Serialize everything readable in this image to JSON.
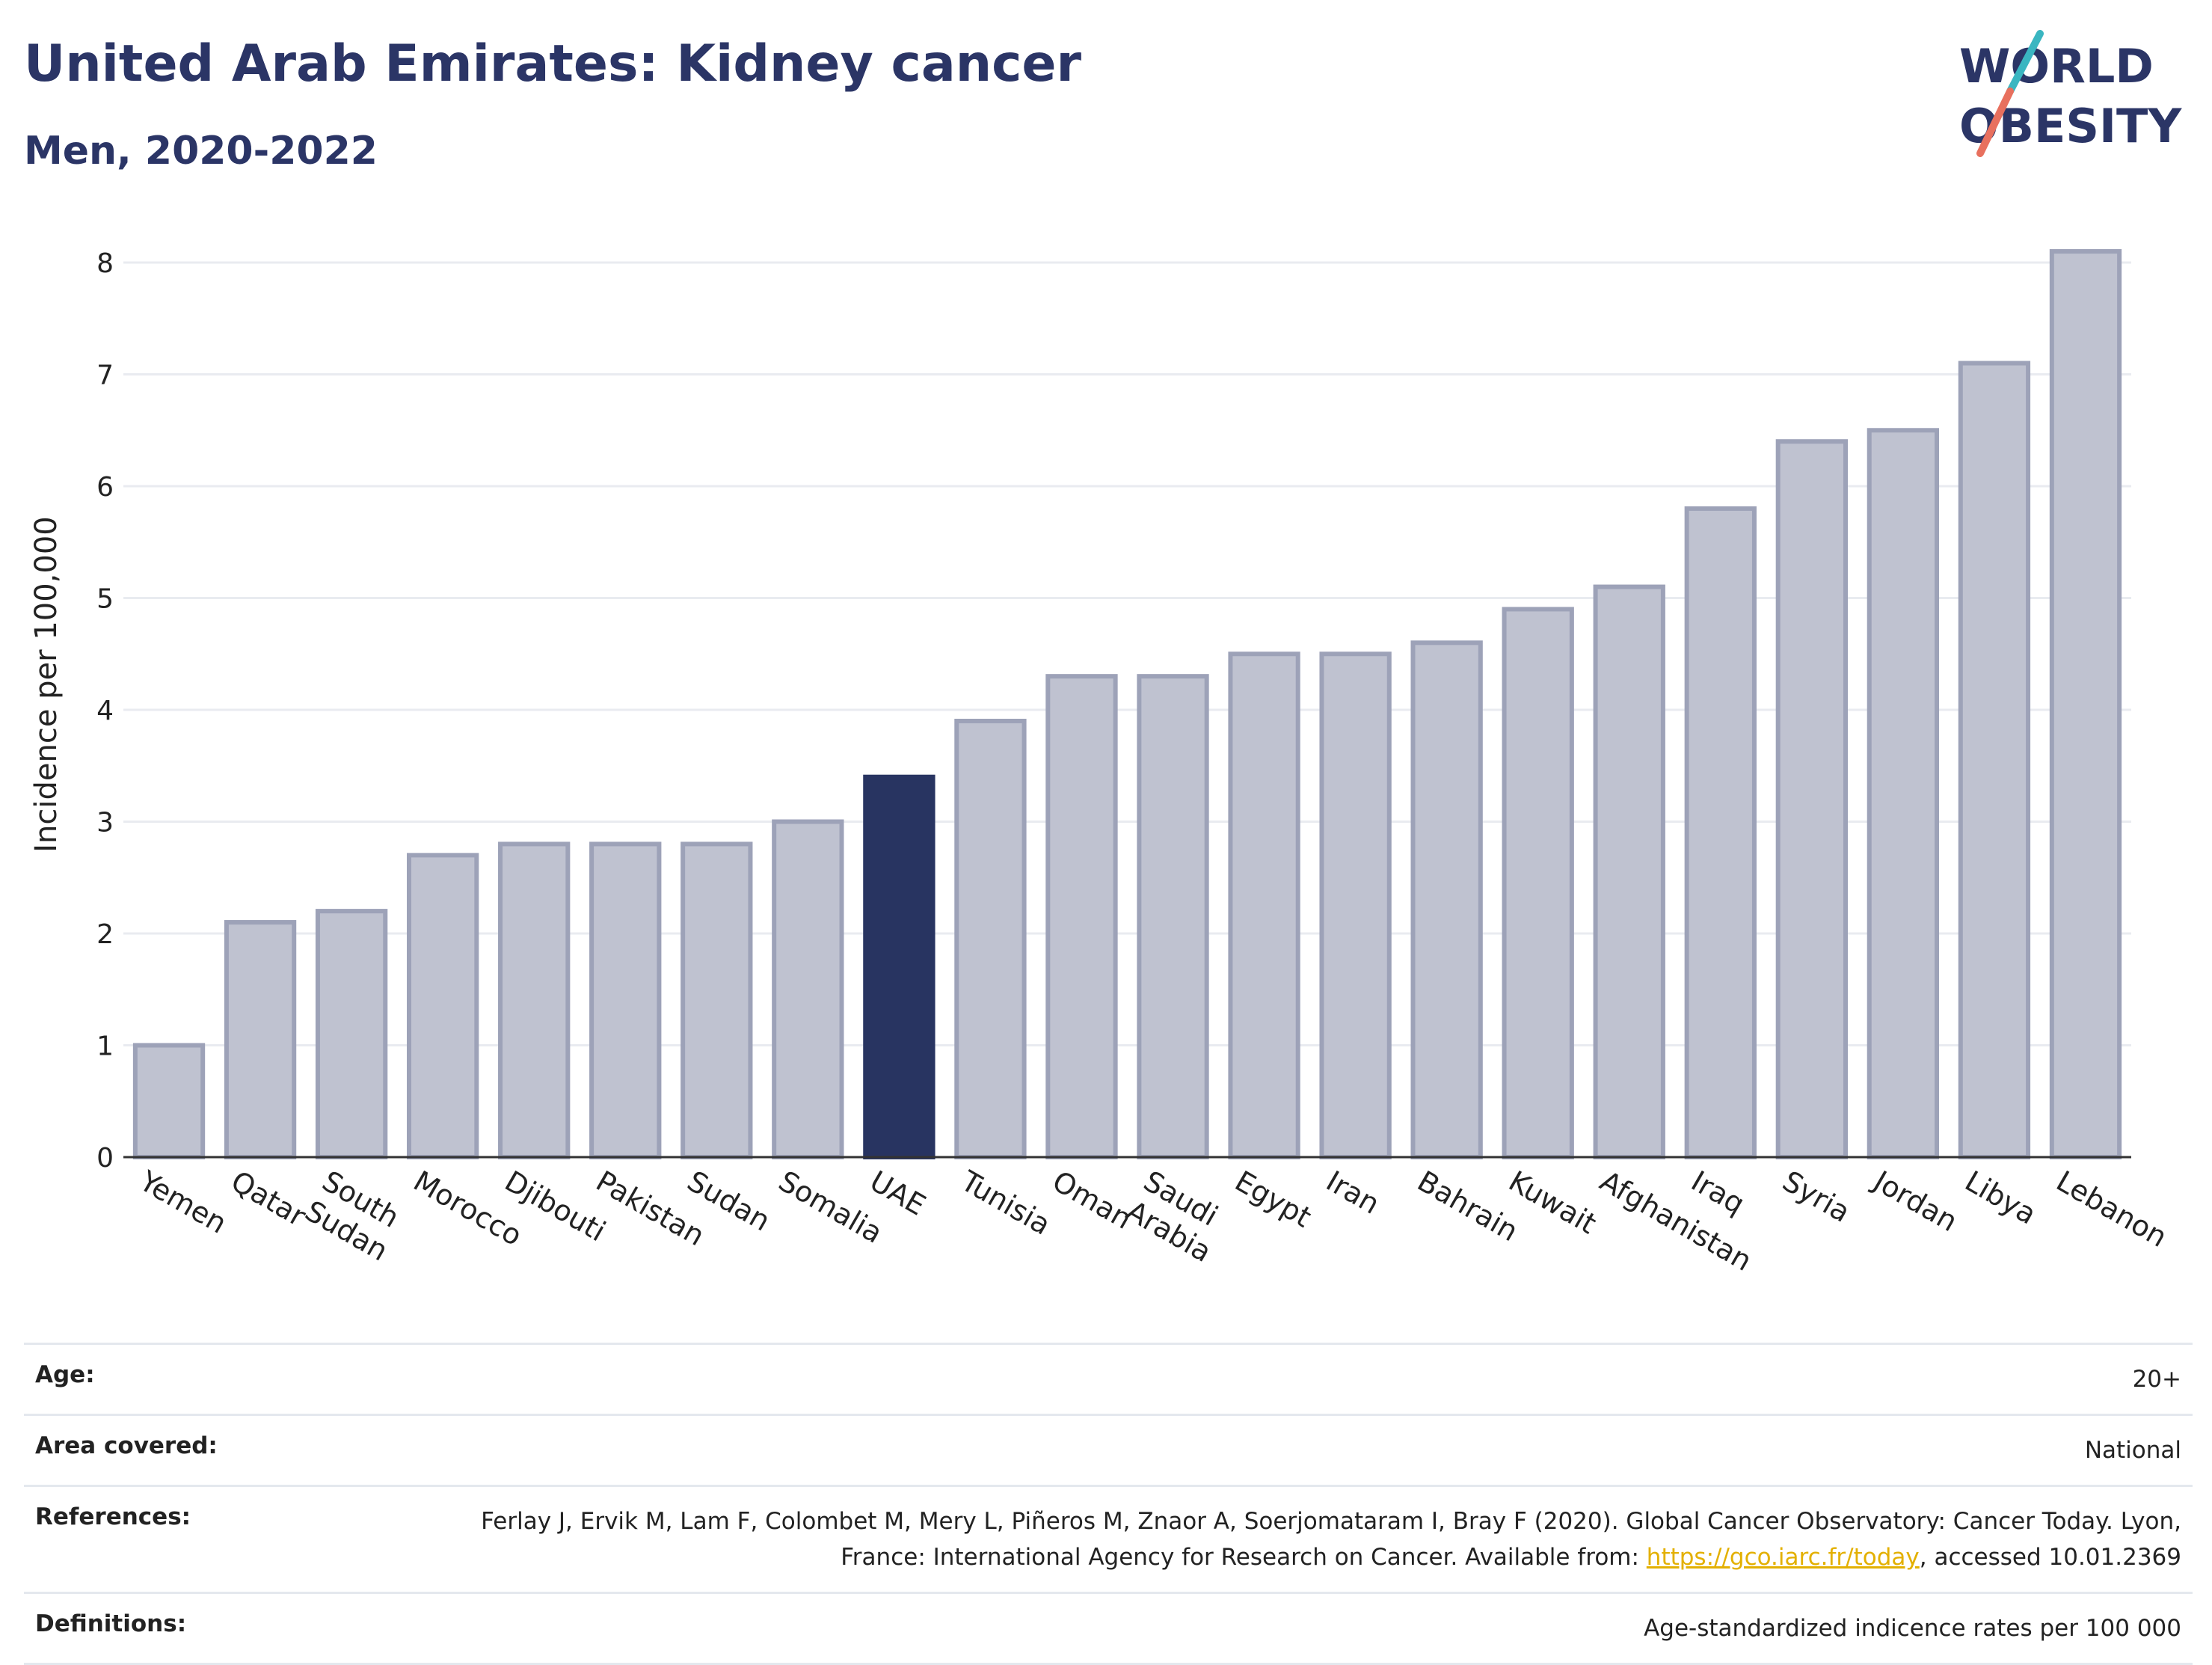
{
  "header": {
    "title": "United Arab Emirates: Kidney cancer",
    "subtitle": "Men, 2020-2022"
  },
  "logo": {
    "line1": "WORLD",
    "line2": "OBESITY",
    "colors": {
      "text": "#2b3566",
      "slash_top": "#3ab6c1",
      "slash_bottom": "#e8705e"
    }
  },
  "chart_data": {
    "type": "bar",
    "ylabel": "Incidence per 100,000",
    "xlabel": "",
    "ylim": [
      0,
      8.2
    ],
    "yticks": [
      0,
      1,
      2,
      3,
      4,
      5,
      6,
      7,
      8
    ],
    "grid": true,
    "highlight": "UAE",
    "colors": {
      "bar": "#bfc2d0",
      "bar_border": "#9da2b8",
      "highlight": "#283461",
      "grid": "#e9ebf0"
    },
    "categories": [
      "Yemen",
      "Qatar",
      "South Sudan",
      "Morocco",
      "Djibouti",
      "Pakistan",
      "Sudan",
      "Somalia",
      "UAE",
      "Tunisia",
      "Oman",
      "Saudi Arabia",
      "Egypt",
      "Iran",
      "Bahrain",
      "Kuwait",
      "Afghanistan",
      "Iraq",
      "Syria",
      "Jordan",
      "Libya",
      "Lebanon"
    ],
    "values": [
      1.0,
      2.1,
      2.2,
      2.7,
      2.8,
      2.8,
      2.8,
      3.0,
      3.4,
      3.9,
      4.3,
      4.3,
      4.5,
      4.5,
      4.6,
      4.9,
      5.1,
      5.8,
      6.4,
      6.5,
      7.1,
      8.1
    ]
  },
  "meta": {
    "rows": [
      {
        "key": "Age:",
        "value": "20+"
      },
      {
        "key": "Area covered:",
        "value": "National"
      },
      {
        "key": "References:",
        "value": "Ferlay J, Ervik M, Lam F, Colombet M, Mery L, Piñeros M, Znaor A, Soerjomataram I, Bray F (2020). Global Cancer Observatory: Cancer Today. Lyon, France: International Agency for Research on Cancer. Available from:",
        "link": "https://gco.iarc.fr/today",
        "suffix": ", accessed 10.01.2369"
      },
      {
        "key": "Definitions:",
        "value": "Age-standardized indicence rates per 100 000"
      }
    ]
  }
}
